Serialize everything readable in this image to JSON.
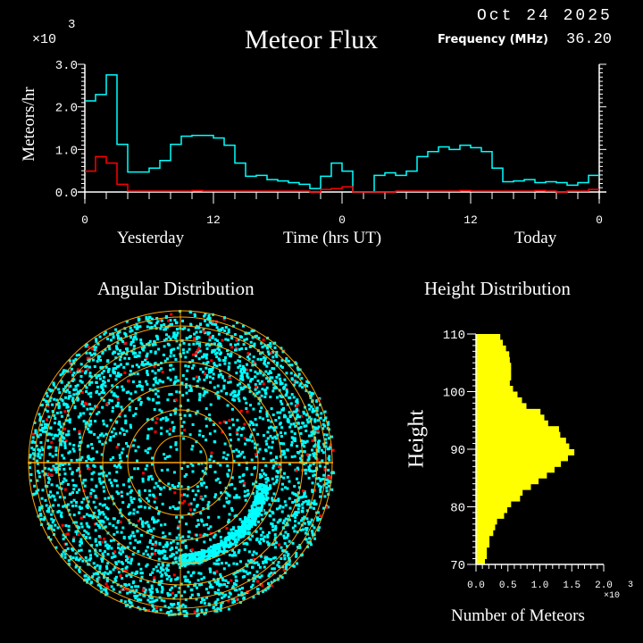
{
  "header": {
    "title": "Meteor Flux",
    "date": "Oct 24 2025",
    "frequency_label": "Frequency (MHz)",
    "frequency_value": "36.20"
  },
  "colors": {
    "background": "#000000",
    "all_meteors": "#00ffff",
    "shower": "#ff0000",
    "height_bars": "#ffff00",
    "grid": "#ffa500",
    "axes": "#ffffff"
  },
  "chart_data": [
    {
      "type": "line",
      "title": "Meteor Flux",
      "ylabel": "Meteors/hr",
      "yscale_label": "×10",
      "yscale_exp": "3",
      "xlabel": "Time (hrs UT)",
      "day_labels": [
        "Yesterday",
        "Today"
      ],
      "x_tick_labels": [
        "0",
        "12",
        "0",
        "12",
        "0"
      ],
      "y_tick_labels": [
        "0.0",
        "1.0",
        "2.0",
        "3.0"
      ],
      "xlim_hours": [
        0,
        48
      ],
      "ylim": [
        0,
        3.0
      ],
      "step": true,
      "series": [
        {
          "color": "#00ffff",
          "values": [
            2.14,
            2.29,
            2.75,
            1.12,
            0.47,
            0.47,
            0.56,
            0.74,
            1.12,
            1.31,
            1.33,
            1.33,
            1.27,
            1.1,
            0.68,
            0.37,
            0.39,
            0.29,
            0.26,
            0.22,
            0.18,
            0.08,
            0.37,
            0.68,
            0.49,
            0,
            0,
            0.39,
            0.45,
            0.39,
            0.49,
            0.83,
            0.95,
            1.06,
            1.0,
            1.1,
            1.04,
            0.95,
            0.56,
            0.24,
            0.26,
            0.29,
            0.22,
            0.24,
            0.22,
            0.16,
            0.22,
            0.39
          ]
        },
        {
          "color": "#ff0000",
          "values": [
            0.49,
            0.83,
            0.68,
            0.18,
            0.02,
            0.02,
            0.02,
            0.02,
            0.02,
            0.02,
            0.035,
            0.02,
            0.02,
            0.02,
            0.02,
            0.02,
            0.02,
            0.02,
            0.02,
            0.02,
            0.02,
            0,
            0.06,
            0.08,
            0.12,
            0,
            0,
            0,
            0,
            0.02,
            0.02,
            0.02,
            0.02,
            0.02,
            0.02,
            0.035,
            0.02,
            0.02,
            0.02,
            0.02,
            0.02,
            0.02,
            0.035,
            0.02,
            0,
            0.02,
            0.02,
            0.06
          ]
        }
      ]
    },
    {
      "type": "scatter",
      "title": "Angular Distribution",
      "projection": "polar sky map",
      "series_colors": [
        "#00ffff",
        "#ff0000"
      ]
    },
    {
      "type": "bar",
      "orientation": "horizontal",
      "title": "Height Distribution",
      "ylabel": "Height",
      "xlabel": "Number of Meteors",
      "xscale_label": "×10",
      "xscale_exp": "3",
      "x_tick_labels": [
        "0.0",
        "0.5",
        "1.0",
        "1.5",
        "2.0"
      ],
      "y_tick_labels": [
        "70",
        "80",
        "90",
        "100",
        "110"
      ],
      "xlim": [
        0,
        2.0
      ],
      "ylim": [
        70,
        110
      ],
      "bin_starts": [
        70,
        71,
        72,
        73,
        74,
        75,
        76,
        77,
        78,
        79,
        80,
        81,
        82,
        83,
        84,
        85,
        86,
        87,
        88,
        89,
        90,
        91,
        92,
        93,
        94,
        95,
        96,
        97,
        98,
        99,
        100,
        101,
        102,
        103,
        104,
        105,
        106,
        107,
        108,
        109
      ],
      "values": [
        0.14,
        0.17,
        0.17,
        0.21,
        0.21,
        0.27,
        0.3,
        0.33,
        0.44,
        0.49,
        0.55,
        0.69,
        0.73,
        0.86,
        0.98,
        1.11,
        1.23,
        1.33,
        1.44,
        1.54,
        1.46,
        1.41,
        1.32,
        1.3,
        1.13,
        1.07,
        1.01,
        0.79,
        0.72,
        0.65,
        0.58,
        0.53,
        0.55,
        0.55,
        0.55,
        0.53,
        0.52,
        0.47,
        0.42,
        0.38
      ]
    }
  ]
}
